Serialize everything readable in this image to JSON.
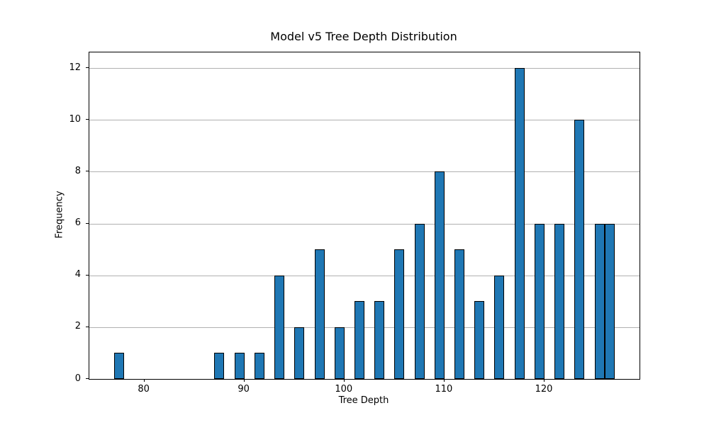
{
  "chart_data": {
    "type": "bar",
    "subtype": "histogram",
    "title": "Model v5 Tree Depth Distribution",
    "xlabel": "Tree Depth",
    "ylabel": "Frequency",
    "bin_width": 1,
    "bin_left_edges": [
      77,
      87,
      89,
      91,
      93,
      95,
      97,
      99,
      101,
      103,
      105,
      107,
      109,
      111,
      113,
      115,
      117,
      119,
      121,
      123,
      125,
      126
    ],
    "values": [
      1,
      1,
      1,
      1,
      4,
      2,
      5,
      2,
      3,
      3,
      5,
      6,
      8,
      5,
      3,
      4,
      12,
      6,
      6,
      10,
      6,
      6
    ],
    "xticks": [
      80,
      90,
      100,
      110,
      120
    ],
    "yticks": [
      0,
      2,
      4,
      6,
      8,
      10,
      12
    ],
    "xlim": [
      74.5,
      129.5
    ],
    "ylim": [
      0,
      12.6
    ],
    "grid": "horizontal",
    "legend": "none",
    "bar_color": "#1f77b4",
    "bar_edge_color": "#000000",
    "grid_color": "#b0b0b0",
    "text_color": "#000000"
  }
}
